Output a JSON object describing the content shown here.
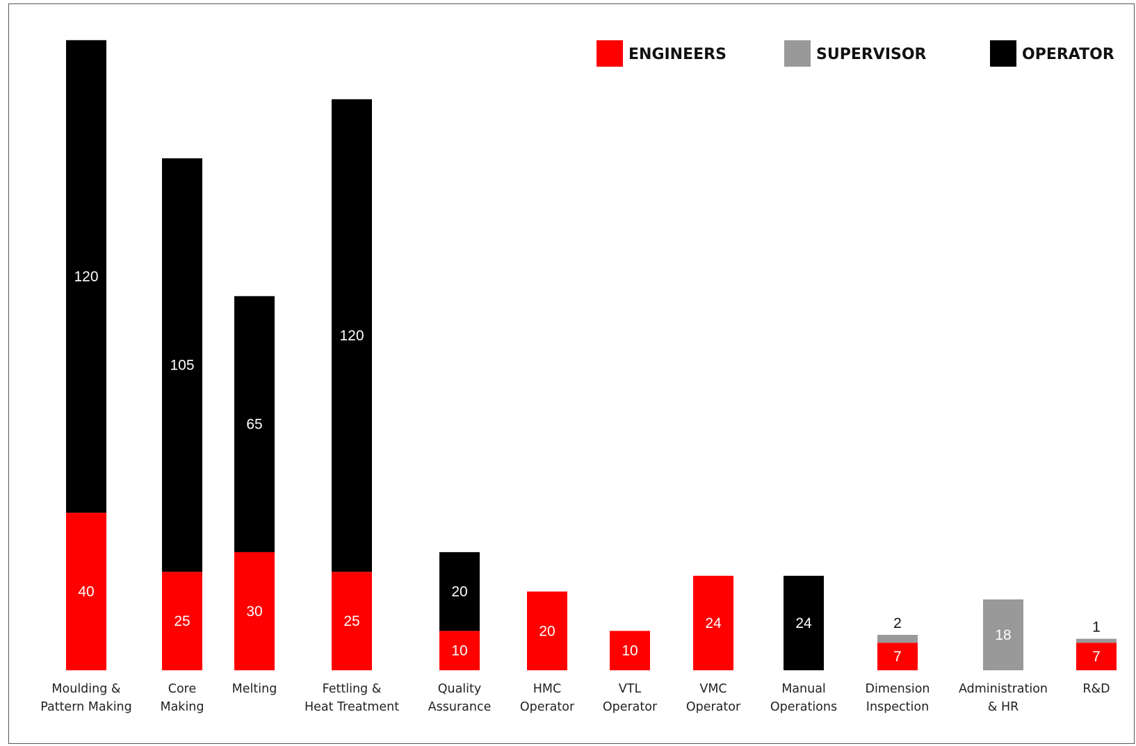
{
  "chart_data": {
    "type": "bar",
    "stacked": true,
    "categories": [
      [
        "Moulding &",
        "Pattern Making"
      ],
      [
        "Core",
        "Making"
      ],
      [
        "Melting"
      ],
      [
        "Fettling &",
        "Heat Treatment"
      ],
      [
        "Quality",
        "Assurance"
      ],
      [
        "HMC",
        "Operator"
      ],
      [
        "VTL",
        "Operator"
      ],
      [
        "VMC",
        "Operator"
      ],
      [
        "Manual",
        "Operations"
      ],
      [
        "Dimension",
        "Inspection"
      ],
      [
        "Administration",
        "& HR"
      ],
      [
        "R&D"
      ]
    ],
    "series": [
      {
        "name": "ENGINEERS",
        "color": "#ff0000",
        "values": [
          40,
          25,
          30,
          25,
          10,
          20,
          10,
          24,
          0,
          7,
          0,
          7
        ]
      },
      {
        "name": "SUPERVISOR",
        "color": "#999999",
        "values": [
          0,
          0,
          0,
          0,
          0,
          0,
          0,
          0,
          0,
          2,
          18,
          1
        ]
      },
      {
        "name": "OPERATOR",
        "color": "#000000",
        "values": [
          120,
          105,
          65,
          120,
          20,
          0,
          0,
          0,
          24,
          0,
          0,
          0
        ]
      }
    ],
    "legend_position": "top-right",
    "grid": false,
    "axes_visible": false,
    "ylim": [
      0,
      160
    ]
  }
}
